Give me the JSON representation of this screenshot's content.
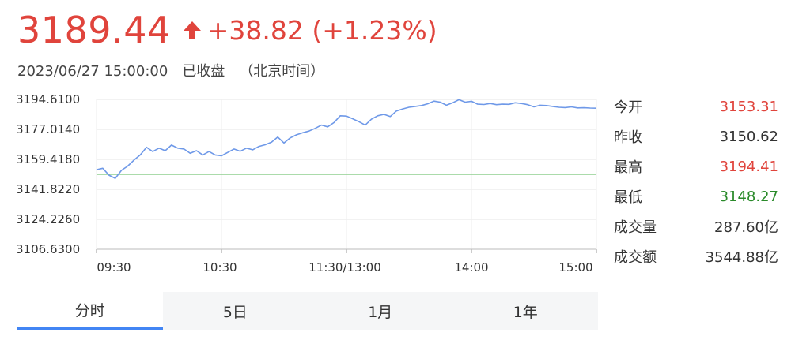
{
  "quote": {
    "price": "3189.44",
    "change": "+38.82 (+1.23%)",
    "datetime": "2023/06/27 15:00:00",
    "status": "已收盘",
    "timezone": "（北京时间）"
  },
  "colors": {
    "up": "#e0443c",
    "down": "#2a8a2a",
    "line": "#6f99e8",
    "baseline": "#8fcf8f",
    "tab_active": "#4285f4"
  },
  "stats": [
    {
      "label": "今开",
      "value": "3153.31",
      "tone": "red"
    },
    {
      "label": "昨收",
      "value": "3150.62",
      "tone": "neutral"
    },
    {
      "label": "最高",
      "value": "3194.41",
      "tone": "red"
    },
    {
      "label": "最低",
      "value": "3148.27",
      "tone": "green"
    },
    {
      "label": "成交量",
      "value": "287.60亿",
      "tone": "neutral"
    },
    {
      "label": "成交额",
      "value": "3544.88亿",
      "tone": "neutral"
    }
  ],
  "tabs": [
    {
      "label": "分时",
      "active": true
    },
    {
      "label": "5日",
      "active": false
    },
    {
      "label": "1月",
      "active": false
    },
    {
      "label": "1年",
      "active": false
    }
  ],
  "chart_data": {
    "type": "line",
    "title": "",
    "xlabel": "",
    "ylabel": "",
    "y_ticks": [
      "3194.6100",
      "3177.0140",
      "3159.4180",
      "3141.8220",
      "3124.2260",
      "3106.6300"
    ],
    "ylim": [
      3106.63,
      3194.61
    ],
    "x_ticks": [
      "09:30",
      "10:30",
      "11:30/13:00",
      "14:00",
      "15:00"
    ],
    "xlim": [
      0,
      240
    ],
    "x_unit": "minutes of trading session",
    "baseline": 3150.62,
    "grid": true,
    "series": [
      {
        "x": [
          0,
          3,
          6,
          9,
          12,
          15,
          18,
          21,
          24,
          27,
          30,
          33,
          36,
          39,
          42,
          45,
          48,
          51,
          54,
          57,
          60,
          63,
          66,
          69,
          72,
          75,
          78,
          81,
          84,
          87,
          90,
          93,
          96,
          99,
          102,
          105,
          108,
          111,
          114,
          117,
          120,
          123,
          126,
          129,
          132,
          135,
          138,
          141,
          144,
          147,
          150,
          153,
          156,
          159,
          162,
          165,
          168,
          171,
          174,
          177,
          180,
          183,
          186,
          189,
          192,
          195,
          198,
          201,
          204,
          207,
          210,
          213,
          216,
          219,
          222,
          225,
          228,
          231,
          234,
          237,
          240
        ],
        "y": [
          3153.31,
          3154.2,
          3150.1,
          3148.27,
          3153.0,
          3155.5,
          3159.0,
          3162.0,
          3166.5,
          3164.0,
          3166.0,
          3164.5,
          3167.8,
          3166.0,
          3165.5,
          3163.0,
          3164.5,
          3162.0,
          3164.0,
          3162.0,
          3161.5,
          3163.5,
          3165.5,
          3164.2,
          3166.0,
          3165.0,
          3167.0,
          3168.0,
          3169.5,
          3172.5,
          3169.0,
          3172.0,
          3173.8,
          3175.0,
          3176.0,
          3177.6,
          3179.5,
          3178.5,
          3181.0,
          3185.0,
          3184.8,
          3183.2,
          3181.5,
          3179.5,
          3183.0,
          3185.0,
          3185.8,
          3184.5,
          3187.8,
          3189.0,
          3190.0,
          3190.5,
          3191.0,
          3192.0,
          3193.6,
          3193.0,
          3191.2,
          3192.6,
          3194.41,
          3193.0,
          3193.5,
          3191.8,
          3191.6,
          3192.2,
          3191.5,
          3191.8,
          3191.7,
          3192.6,
          3192.2,
          3191.5,
          3190.2,
          3191.2,
          3191.0,
          3190.5,
          3190.0,
          3189.8,
          3190.2,
          3189.6,
          3189.7,
          3189.5,
          3189.44
        ]
      }
    ]
  }
}
